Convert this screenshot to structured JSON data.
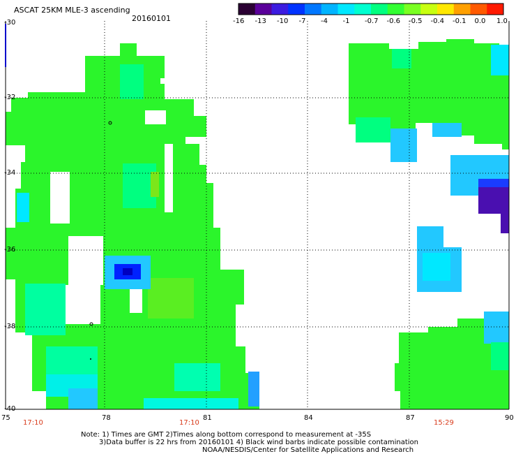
{
  "header": {
    "title": "ASCAT 25KM MLE-3 ascending",
    "date": "20160101"
  },
  "colorbar": {
    "colors": [
      "#2a0033",
      "#5a009a",
      "#3c1ce0",
      "#0033ff",
      "#0077ff",
      "#00b4ff",
      "#00e8ff",
      "#00ffd0",
      "#00ff80",
      "#33ff33",
      "#7aff22",
      "#c8ff10",
      "#ffe800",
      "#ffa000",
      "#ff5a00",
      "#ff1a00"
    ],
    "labels": [
      "-16",
      "-13",
      "-10",
      "-7",
      "-4",
      "-1",
      "-0.7",
      "-0.6",
      "-0.5",
      "-0.4",
      "-0.1",
      "0.0",
      "1.0"
    ]
  },
  "axes": {
    "lat_labels": [
      "-30",
      "-32",
      "-34",
      "-36",
      "-38",
      "-40"
    ],
    "lon_labels": [
      "75",
      "78",
      "81",
      "84",
      "87",
      "90"
    ]
  },
  "times": [
    "17:10",
    "17:10",
    "15:29"
  ],
  "notes": [
    "Note: 1) Times are GMT 2)Times along bottom correspond to measurement at -35S",
    "3)Data buffer is 22 hrs from 20160101 4) Black wind barbs indicate possible contamination",
    "NOAA/NESDIS/Center for Satellite Applications and Research"
  ],
  "colors": {
    "green": "#2bf52b",
    "light_green": "#00ff66",
    "cyan": "#00ffe6",
    "sky": "#22c8ff",
    "blue": "#0022ff",
    "purple": "#4a0fb0",
    "yellow_green": "#7ce61a",
    "time_red": "#d83a1a",
    "axis_blue": "#0000cc"
  }
}
